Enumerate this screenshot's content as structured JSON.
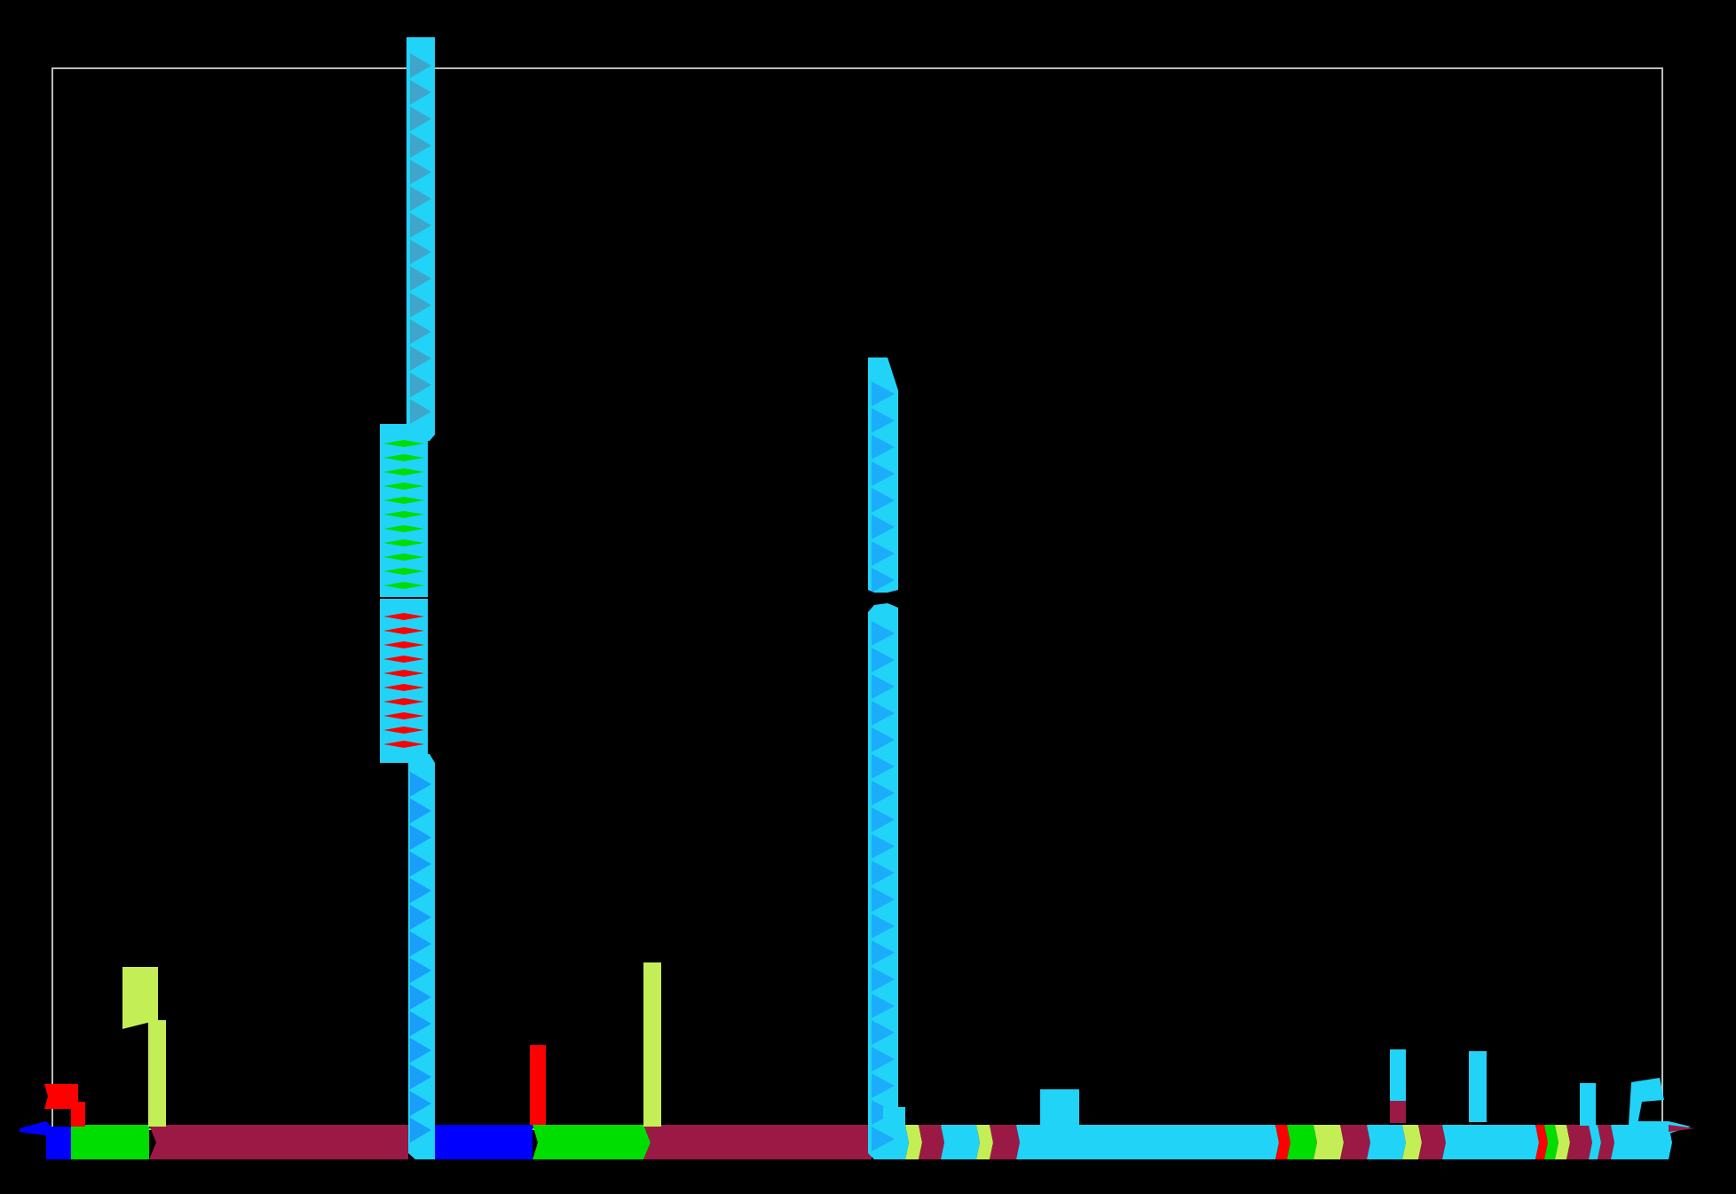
{
  "colors": {
    "background": "#000000",
    "frame": "#bdbdbd",
    "cyan": "#22d3f8",
    "maroon": "#9b1a45",
    "green": "#00dd00",
    "lime": "#c4ee55",
    "red": "#ff0000",
    "blue": "#0000ff"
  },
  "segments": [
    {
      "id": "bar-blue-start",
      "color": "blue"
    },
    {
      "id": "bar-green-1",
      "color": "green"
    },
    {
      "id": "bar-maroon-1",
      "color": "maroon"
    },
    {
      "id": "bar-cyan-column-1-base",
      "color": "cyan"
    },
    {
      "id": "bar-blue-2",
      "color": "blue"
    },
    {
      "id": "bar-green-2",
      "color": "green"
    },
    {
      "id": "bar-maroon-2",
      "color": "maroon"
    },
    {
      "id": "bar-cyan-column-2-base",
      "color": "cyan"
    },
    {
      "id": "bar-mixed-tail",
      "color": "cyan"
    }
  ],
  "columns": [
    {
      "id": "tall-column-1",
      "color": "cyan"
    },
    {
      "id": "green-stack-block",
      "color": "cyan",
      "accent": "green"
    },
    {
      "id": "red-stack-block",
      "color": "cyan",
      "accent": "red"
    },
    {
      "id": "tall-column-2",
      "color": "cyan"
    }
  ]
}
